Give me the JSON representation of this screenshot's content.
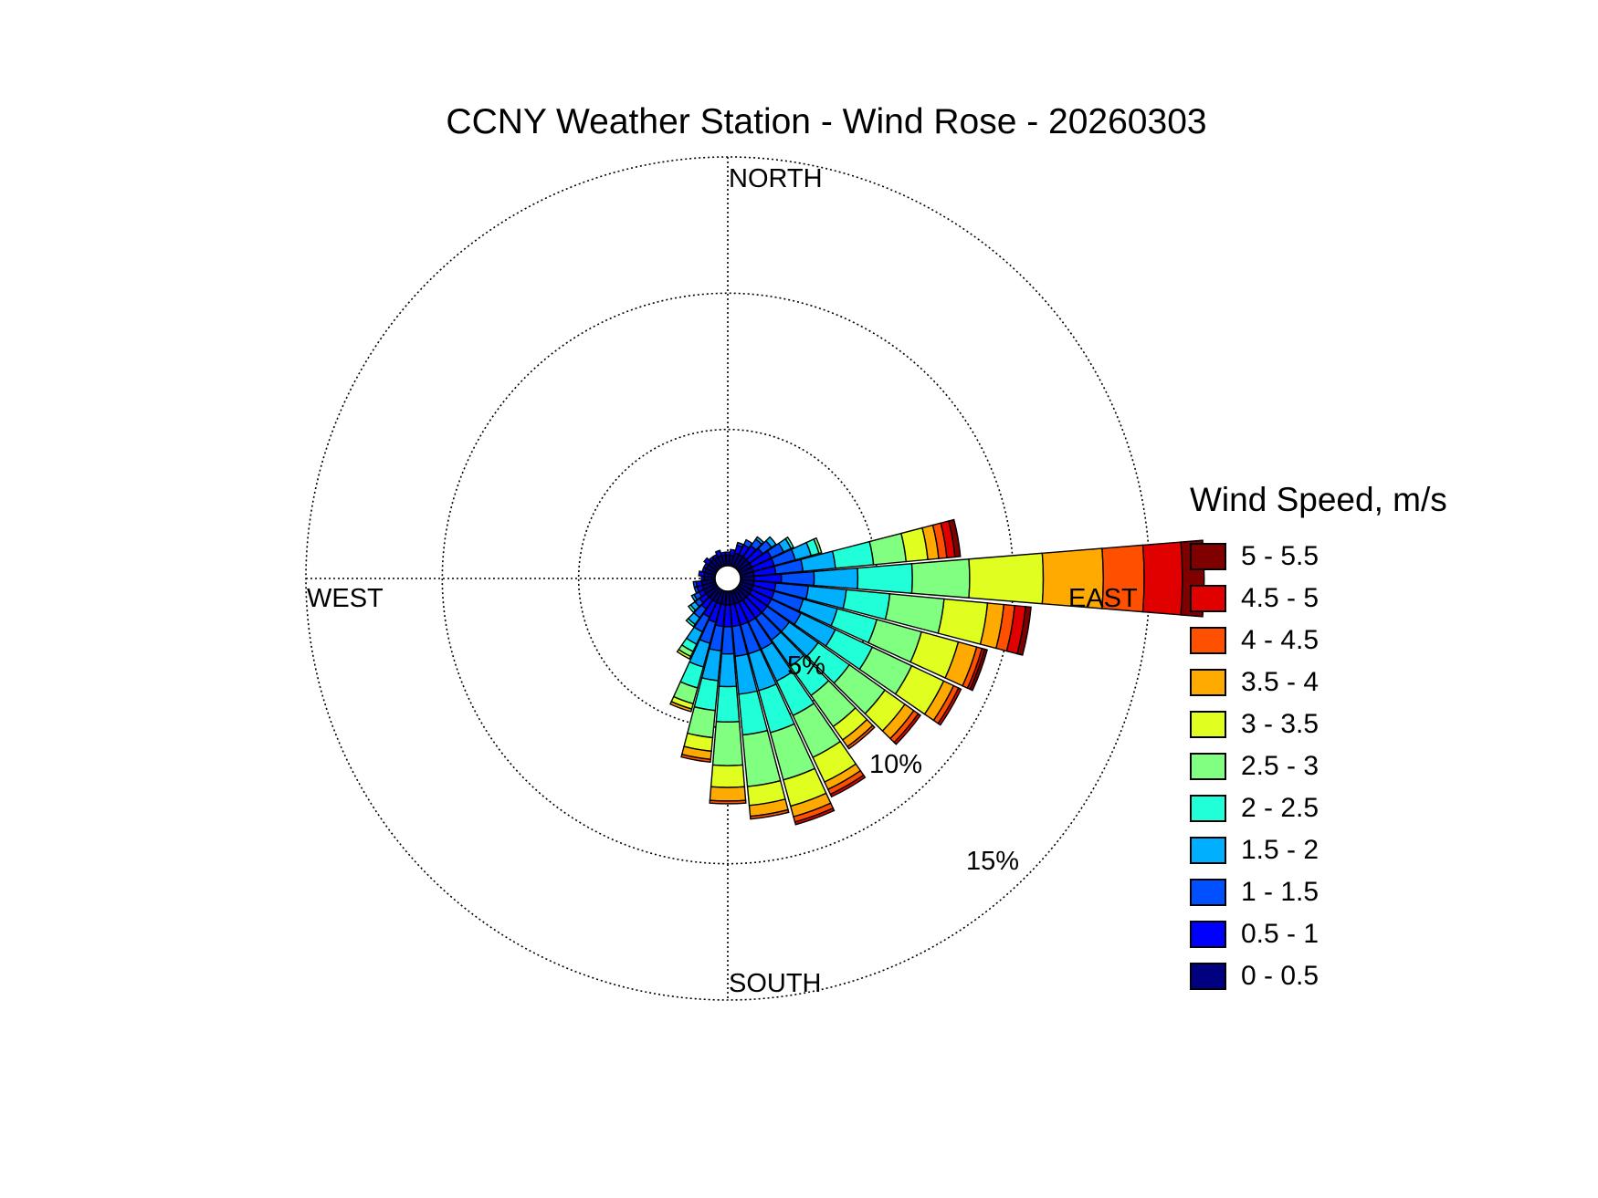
{
  "chart_data": {
    "type": "polar-bar",
    "title": "CCNY Weather Station - Wind Rose - 20260303",
    "direction_labels": {
      "north": "NORTH",
      "south": "SOUTH",
      "east": "EAST",
      "west": "WEST"
    },
    "rings": [
      {
        "value": 5,
        "label": "5%"
      },
      {
        "value": 10,
        "label": "10%"
      },
      {
        "value": 15,
        "label": "15%"
      }
    ],
    "r_max": 15,
    "legend_title": "Wind Speed, m/s",
    "speed_bins": [
      {
        "label": "0 - 0.5",
        "color": "#000080"
      },
      {
        "label": "0.5 - 1",
        "color": "#0000ff"
      },
      {
        "label": "1 - 1.5",
        "color": "#0050ff"
      },
      {
        "label": "1.5 - 2",
        "color": "#00b0ff"
      },
      {
        "label": "2 - 2.5",
        "color": "#20ffd8"
      },
      {
        "label": "2.5 - 3",
        "color": "#80ff80"
      },
      {
        "label": "3 - 3.5",
        "color": "#e0ff20"
      },
      {
        "label": "3.5 - 4",
        "color": "#ffaa00"
      },
      {
        "label": "4 - 4.5",
        "color": "#ff5000"
      },
      {
        "label": "4.5 - 5",
        "color": "#e00000"
      },
      {
        "label": "5 - 5.5",
        "color": "#800000"
      }
    ],
    "sector_width_deg": 10,
    "sectors": [
      {
        "direction": 0,
        "values": [
          0.4,
          0.1
        ]
      },
      {
        "direction": 10,
        "values": [
          0.4,
          0.2
        ]
      },
      {
        "direction": 20,
        "values": [
          0.5,
          0.3,
          0.1
        ]
      },
      {
        "direction": 30,
        "values": [
          0.5,
          0.4,
          0.2
        ]
      },
      {
        "direction": 40,
        "values": [
          0.5,
          0.5,
          0.3,
          0.1
        ]
      },
      {
        "direction": 50,
        "values": [
          0.5,
          0.6,
          0.4,
          0.2
        ]
      },
      {
        "direction": 60,
        "values": [
          0.5,
          0.8,
          0.5,
          0.3,
          0.1
        ]
      },
      {
        "direction": 70,
        "values": [
          0.5,
          0.8,
          0.8,
          0.6,
          0.3,
          0.1
        ]
      },
      {
        "direction": 80,
        "values": [
          0.5,
          0.8,
          1.0,
          1.2,
          1.4,
          1.2,
          0.8,
          0.4,
          0.3,
          0.3,
          0.2
        ]
      },
      {
        "direction": 90,
        "values": [
          0.5,
          1.0,
          1.2,
          1.6,
          2.0,
          2.1,
          2.7,
          2.2,
          1.5,
          1.4,
          0.8
        ]
      },
      {
        "direction": 100,
        "values": [
          0.5,
          0.8,
          1.2,
          1.4,
          1.6,
          2.0,
          1.6,
          0.6,
          0.4,
          0.4,
          0.2
        ]
      },
      {
        "direction": 110,
        "values": [
          0.5,
          0.8,
          1.1,
          1.3,
          1.5,
          1.7,
          1.4,
          0.7,
          0.2,
          0.1,
          0.1
        ]
      },
      {
        "direction": 120,
        "values": [
          0.5,
          0.8,
          1.2,
          1.4,
          1.5,
          1.6,
          1.3,
          0.4,
          0.2,
          0.1
        ]
      },
      {
        "direction": 130,
        "values": [
          0.5,
          0.8,
          1.0,
          1.3,
          1.4,
          1.6,
          0.9,
          0.4,
          0.2,
          0.1
        ]
      },
      {
        "direction": 140,
        "values": [
          0.5,
          0.8,
          1.0,
          1.2,
          1.3,
          1.4,
          0.6,
          0.3,
          0.1
        ]
      },
      {
        "direction": 150,
        "values": [
          0.5,
          0.8,
          1.1,
          1.3,
          1.4,
          1.7,
          1.0,
          0.3,
          0.2,
          0.1
        ]
      },
      {
        "direction": 160,
        "values": [
          0.5,
          0.8,
          1.1,
          1.4,
          1.6,
          1.8,
          1.0,
          0.4,
          0.2,
          0.1
        ]
      },
      {
        "direction": 170,
        "values": [
          0.5,
          0.8,
          1.1,
          1.4,
          1.5,
          1.9,
          0.7,
          0.4,
          0.1
        ]
      },
      {
        "direction": 180,
        "values": [
          0.5,
          0.8,
          1.0,
          1.2,
          1.3,
          1.6,
          0.8,
          0.5,
          0.1
        ]
      },
      {
        "direction": 190,
        "values": [
          0.5,
          0.8,
          0.9,
          1.1,
          1.1,
          1.0,
          0.5,
          0.3,
          0.1
        ]
      },
      {
        "direction": 200,
        "values": [
          0.5,
          0.7,
          0.8,
          0.9,
          0.8,
          0.6,
          0.2,
          0.1
        ]
      },
      {
        "direction": 210,
        "values": [
          0.5,
          0.6,
          0.6,
          0.5,
          0.3,
          0.2,
          0.1
        ]
      },
      {
        "direction": 220,
        "values": [
          0.5,
          0.4,
          0.4,
          0.3,
          0.1
        ]
      },
      {
        "direction": 230,
        "values": [
          0.5,
          0.3,
          0.2,
          0.2,
          0.1
        ]
      },
      {
        "direction": 240,
        "values": [
          0.5,
          0.2,
          0.2,
          0.1
        ]
      },
      {
        "direction": 250,
        "values": [
          0.5,
          0.2,
          0.1
        ]
      },
      {
        "direction": 260,
        "values": [
          0.5,
          0.2,
          0.1
        ]
      },
      {
        "direction": 270,
        "values": [
          0.4,
          0.1
        ]
      },
      {
        "direction": 280,
        "values": [
          0.4,
          0.2
        ]
      },
      {
        "direction": 290,
        "values": [
          0.4,
          0.1
        ]
      },
      {
        "direction": 300,
        "values": [
          0.4,
          0.1
        ]
      },
      {
        "direction": 310,
        "values": [
          0.4,
          0.2
        ]
      },
      {
        "direction": 320,
        "values": [
          0.4,
          0.1
        ]
      },
      {
        "direction": 330,
        "values": [
          0.4,
          0.1
        ]
      },
      {
        "direction": 340,
        "values": [
          0.4,
          0.2
        ]
      },
      {
        "direction": 350,
        "values": [
          0.4,
          0.1
        ]
      }
    ]
  }
}
